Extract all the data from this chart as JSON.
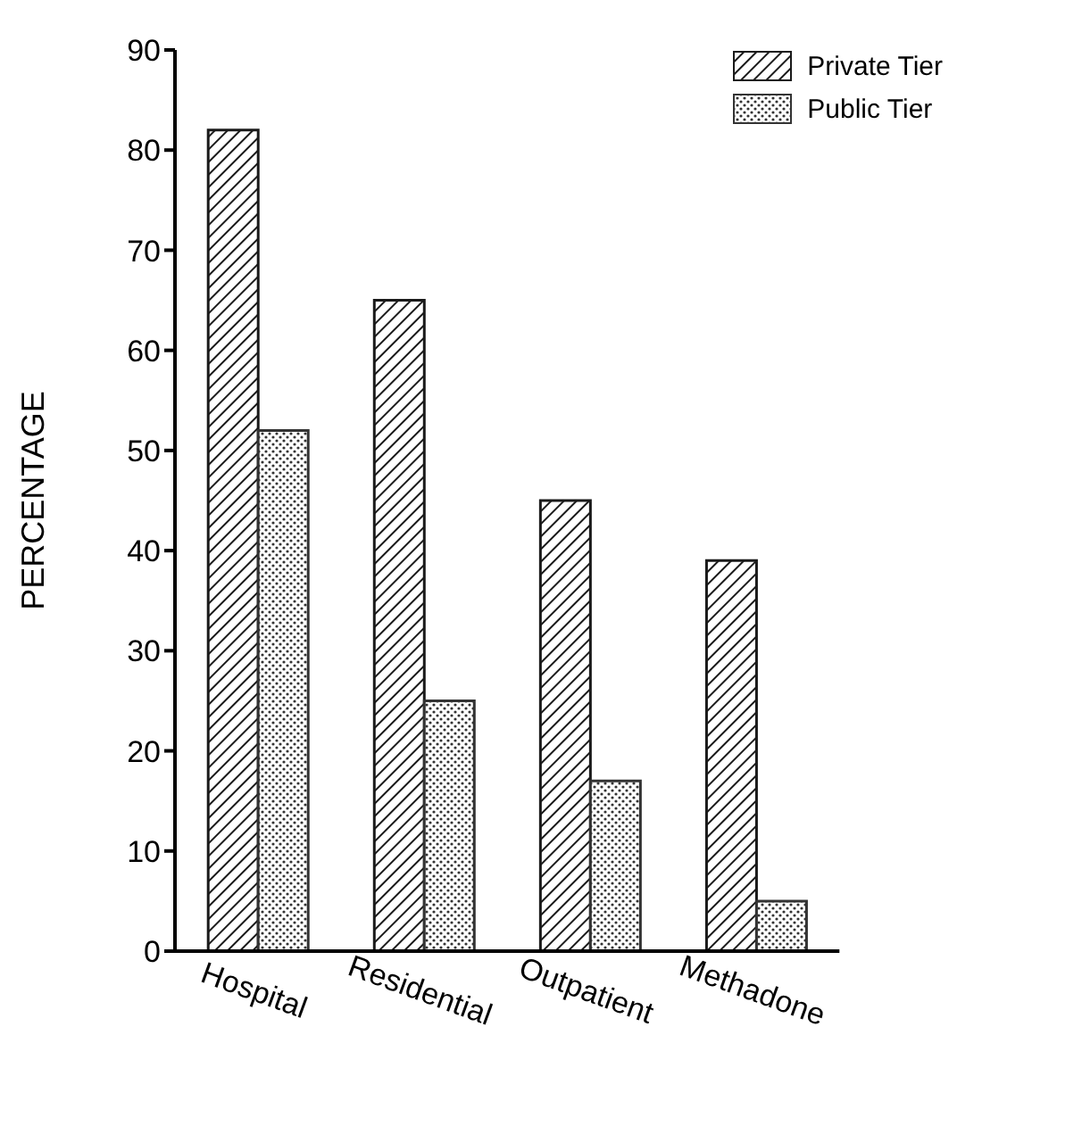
{
  "chart_data": {
    "type": "bar",
    "ylabel": "PERCENTAGE",
    "categories": [
      "Hospital",
      "Residential",
      "Outpatient",
      "Methadone"
    ],
    "series": [
      {
        "name": "Private Tier",
        "color": "#1a1a1a",
        "values": [
          82,
          65,
          45,
          39
        ]
      },
      {
        "name": "Public Tier",
        "color": "#333333",
        "values": [
          52,
          25,
          17,
          5
        ]
      }
    ],
    "ylim": [
      0,
      90
    ],
    "yticks": [
      0,
      10,
      20,
      30,
      40,
      50,
      60,
      70,
      80,
      90
    ],
    "grid": false,
    "legend": "top right"
  }
}
